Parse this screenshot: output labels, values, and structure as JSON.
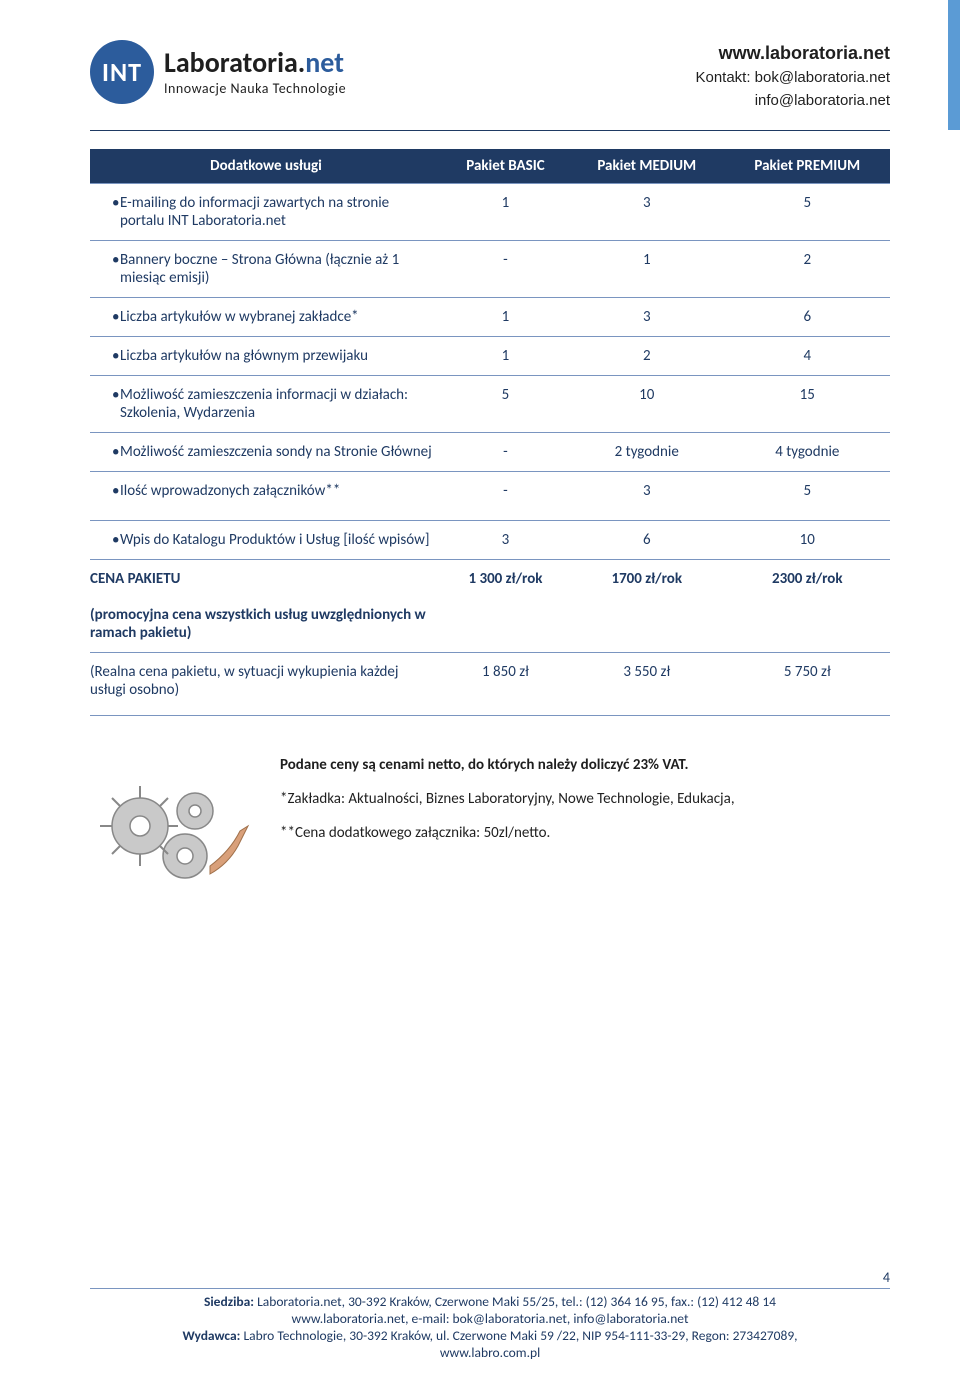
{
  "header": {
    "logo_badge": "INT",
    "logo_main_dark": "Laboratoria.",
    "logo_main_accent": "net",
    "logo_tag": "Innowacje Nauka Technologie",
    "contact_site": "www.laboratoria.net",
    "contact_line1": "Kontakt: bok@laboratoria.net",
    "contact_line2": "info@laboratoria.net"
  },
  "table": {
    "columns": [
      "Dodatkowe usługi",
      "Pakiet BASIC",
      "Pakiet MEDIUM",
      "Pakiet PREMIUM"
    ],
    "rows": [
      {
        "label": "E-mailing do informacji zawartych na stronie portalu INT Laboratoria.net",
        "basic": "1",
        "medium": "3",
        "premium": "5"
      },
      {
        "label": "Bannery boczne – Strona Główna (łącznie aż 1 miesiąc emisji)",
        "basic": "-",
        "medium": "1",
        "premium": "2"
      },
      {
        "label": "Liczba artykułów w wybranej zakładce*",
        "basic": "1",
        "medium": "3",
        "premium": "6"
      },
      {
        "label": "Liczba artykułów na głównym przewijaku",
        "basic": "1",
        "medium": "2",
        "premium": "4"
      },
      {
        "label": "Możliwość zamieszczenia informacji w działach: Szkolenia, Wydarzenia",
        "basic": "5",
        "medium": "10",
        "premium": "15"
      },
      {
        "label": "Możliwość zamieszczenia sondy na Stronie Głównej",
        "basic": "-",
        "medium": "2 tygodnie",
        "premium": "4 tygodnie"
      },
      {
        "label": "Ilość wprowadzonych załączników**",
        "basic": "-",
        "medium": "3",
        "premium": "5"
      }
    ],
    "catalog_row": {
      "label": "Wpis do Katalogu Produktów i Usług [ilość wpisów]",
      "basic": "3",
      "medium": "6",
      "premium": "10"
    },
    "price_row": {
      "label_main": "CENA PAKIETU",
      "label_sub": "(promocyjna cena wszystkich usług uwzględnionych w ramach pakietu)",
      "basic": "1 300 zł/rok",
      "medium": "1700 zł/rok",
      "premium": "2300 zł/rok"
    },
    "real_row": {
      "label": "(Realna cena pakietu, w sytuacji wykupienia każdej usługi osobno)",
      "basic": "1 850 zł",
      "medium": "3 550 zł",
      "premium": "5 750 zł"
    }
  },
  "notes": {
    "line1": "Podane ceny są cenami netto, do których należy doliczyć 23% VAT.",
    "line2": "*Zakładka: Aktualności, Biznes Laboratoryjny, Nowe Technologie, Edukacja,",
    "line3": "**Cena dodatkowego załącznika: 50zl/netto."
  },
  "footer": {
    "page_num": "4",
    "line1_a": "Siedziba: ",
    "line1_b": "Laboratoria.net, 30-392 Kraków, Czerwone Maki 55/25, tel.: (12) 364 16 95, fax.: (12) 412 48 14",
    "line2": "www.laboratoria.net, e-mail: bok@laboratoria.net, info@laboratoria.net",
    "line3_a": "Wydawca: ",
    "line3_b": "Labro Technologie, 30-392 Kraków, ul. Czerwone Maki 59 /22, NIP 954-111-33-29, Regon: 273427089,",
    "line4": "www.labro.com.pl"
  },
  "colors": {
    "header_bg": "#1f3a63",
    "text": "#1f3a63",
    "accent": "#2c5c9c",
    "side": "#5b9bd5"
  }
}
